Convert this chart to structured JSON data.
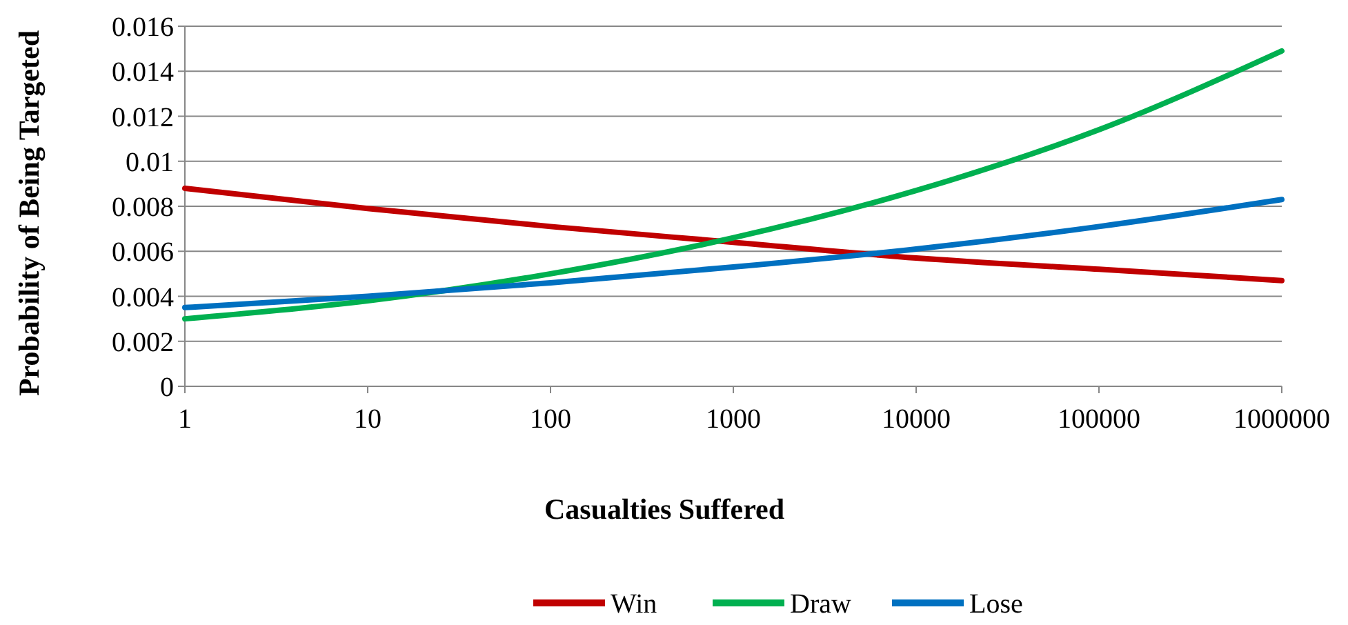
{
  "chart_data": {
    "type": "line",
    "xlabel": "Casualties Suffered",
    "ylabel": "Probability of Being Targeted",
    "x": [
      1,
      10,
      100,
      1000,
      10000,
      100000,
      1000000
    ],
    "series": [
      {
        "name": "Win",
        "color": "#c00000",
        "values": [
          0.0088,
          0.0079,
          0.0071,
          0.0064,
          0.0057,
          0.0052,
          0.0047
        ]
      },
      {
        "name": "Draw",
        "color": "#00b050",
        "values": [
          0.003,
          0.0038,
          0.005,
          0.0066,
          0.0087,
          0.0114,
          0.0149
        ]
      },
      {
        "name": "Lose",
        "color": "#0070c0",
        "values": [
          0.0035,
          0.004,
          0.0046,
          0.0053,
          0.0061,
          0.0071,
          0.0083
        ]
      }
    ],
    "log": "x",
    "xlim": [
      1,
      1000000
    ],
    "xticks": [
      1,
      10,
      100,
      1000,
      10000,
      100000,
      1000000
    ],
    "ylim": [
      0,
      0.016
    ],
    "yticks": [
      0,
      0.002,
      0.004,
      0.006,
      0.008,
      0.01,
      0.012,
      0.014,
      0.016
    ],
    "grid": "y",
    "legend": "bottom",
    "marker": "none",
    "line_style": "solid"
  }
}
